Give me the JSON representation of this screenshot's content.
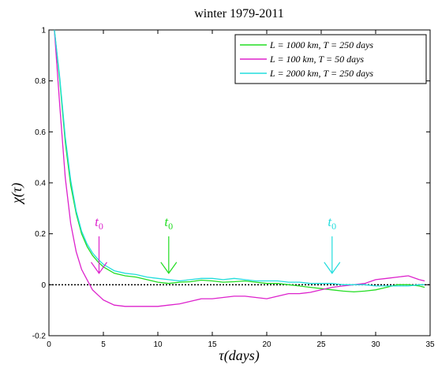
{
  "chart_data": {
    "type": "line",
    "title": "winter 1979-2011",
    "xlabel": "τ(days)",
    "ylabel": "χ(τ)",
    "xlim": [
      0,
      35
    ],
    "ylim": [
      -0.2,
      1
    ],
    "xticks": [
      0,
      5,
      10,
      15,
      20,
      25,
      30,
      35
    ],
    "yticks": [
      -0.2,
      0,
      0.2,
      0.4,
      0.6,
      0.8,
      1
    ],
    "xtick_labels": [
      "0",
      "5",
      "10",
      "15",
      "20",
      "25",
      "30",
      "35"
    ],
    "ytick_labels": [
      "-0.2",
      "0",
      "0.2",
      "0.4",
      "0.6",
      "0.8",
      "1"
    ],
    "reference_line": {
      "y": 0,
      "style": "dotted",
      "color": "#000000"
    },
    "legend_position": "top-right",
    "series": [
      {
        "name": "L = 1000 km,  T = 250 days",
        "color": "#22dd22",
        "x": [
          0.5,
          1,
          1.5,
          2,
          2.5,
          3,
          3.5,
          4,
          4.5,
          5,
          6,
          7,
          8,
          9,
          10,
          11,
          12,
          13,
          14,
          15,
          16,
          17,
          18,
          19,
          20,
          21,
          22,
          23,
          24,
          25,
          26,
          27,
          28,
          29,
          30,
          31,
          32,
          33,
          34,
          34.5
        ],
        "y": [
          1,
          0.8,
          0.56,
          0.39,
          0.28,
          0.2,
          0.15,
          0.115,
          0.09,
          0.07,
          0.045,
          0.035,
          0.03,
          0.02,
          0.01,
          0.005,
          0.01,
          0.012,
          0.018,
          0.015,
          0.01,
          0.012,
          0.015,
          0.01,
          0.005,
          0.005,
          0,
          -0.005,
          -0.01,
          -0.015,
          -0.02,
          -0.025,
          -0.028,
          -0.025,
          -0.02,
          -0.01,
          0,
          0,
          -0.005,
          -0.01
        ]
      },
      {
        "name": "L =   100 km,  T =   50 days",
        "color": "#dd22cc",
        "x": [
          0.5,
          1,
          1.5,
          2,
          2.5,
          3,
          3.5,
          4,
          4.5,
          5,
          6,
          7,
          8,
          9,
          10,
          11,
          12,
          13,
          14,
          15,
          16,
          17,
          18,
          19,
          20,
          21,
          22,
          23,
          24,
          25,
          26,
          27,
          28,
          29,
          30,
          31,
          32,
          33,
          34,
          34.5
        ],
        "y": [
          1,
          0.7,
          0.42,
          0.24,
          0.13,
          0.06,
          0.02,
          -0.02,
          -0.04,
          -0.06,
          -0.08,
          -0.085,
          -0.085,
          -0.085,
          -0.085,
          -0.08,
          -0.075,
          -0.065,
          -0.055,
          -0.055,
          -0.05,
          -0.045,
          -0.045,
          -0.05,
          -0.055,
          -0.045,
          -0.035,
          -0.035,
          -0.03,
          -0.02,
          -0.01,
          -0.005,
          0,
          0.005,
          0.02,
          0.025,
          0.03,
          0.035,
          0.02,
          0.015
        ]
      },
      {
        "name": "L = 2000 km,  T = 250 days",
        "color": "#22dddd",
        "x": [
          0.5,
          1,
          1.5,
          2,
          2.5,
          3,
          3.5,
          4,
          4.5,
          5,
          6,
          7,
          8,
          9,
          10,
          11,
          12,
          13,
          14,
          15,
          16,
          17,
          18,
          19,
          20,
          21,
          22,
          23,
          24,
          25,
          26,
          27,
          28,
          29,
          30,
          31,
          32,
          33,
          34,
          34.5
        ],
        "y": [
          1,
          0.81,
          0.58,
          0.41,
          0.29,
          0.21,
          0.16,
          0.125,
          0.1,
          0.08,
          0.055,
          0.045,
          0.04,
          0.03,
          0.025,
          0.02,
          0.015,
          0.02,
          0.025,
          0.025,
          0.02,
          0.025,
          0.02,
          0.015,
          0.015,
          0.015,
          0.01,
          0.01,
          0.005,
          0.005,
          0.005,
          0,
          0,
          0,
          -0.005,
          -0.005,
          -0.005,
          -0.005,
          0,
          0
        ]
      }
    ],
    "annotations": [
      {
        "label": "t0",
        "x": 4.6,
        "y_text": 0.23,
        "arrow_from": 0.19,
        "arrow_to": 0.045,
        "color": "#dd22cc"
      },
      {
        "label": "t0",
        "x": 11,
        "y_text": 0.23,
        "arrow_from": 0.19,
        "arrow_to": 0.045,
        "color": "#22dd22"
      },
      {
        "label": "t0",
        "x": 26,
        "y_text": 0.23,
        "arrow_from": 0.19,
        "arrow_to": 0.045,
        "color": "#22dddd"
      }
    ]
  }
}
